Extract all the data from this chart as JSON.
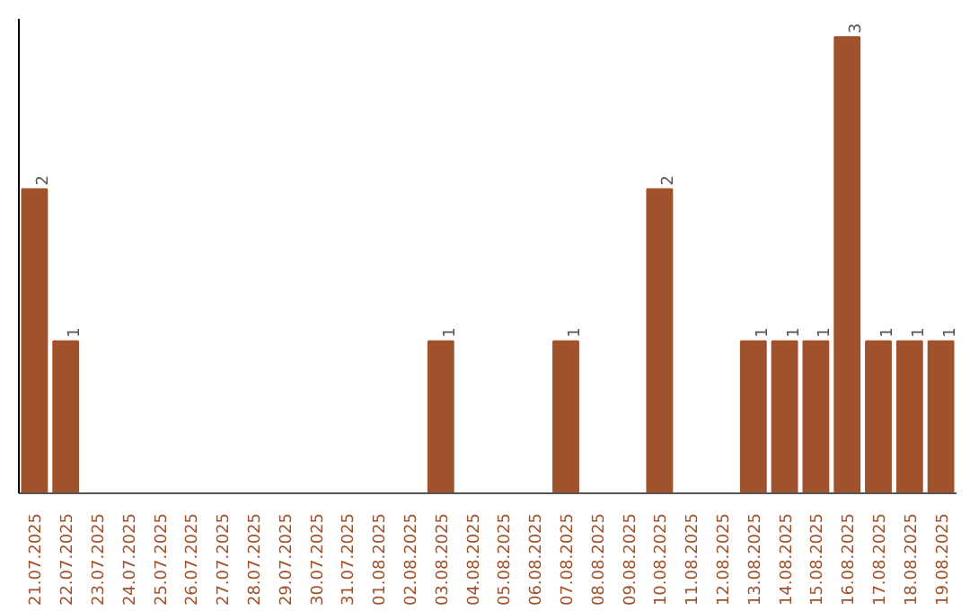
{
  "chart_data": {
    "type": "bar",
    "categories": [
      "21.07.2025",
      "22.07.2025",
      "23.07.2025",
      "24.07.2025",
      "25.07.2025",
      "26.07.2025",
      "27.07.2025",
      "28.07.2025",
      "29.07.2025",
      "30.07.2025",
      "31.07.2025",
      "01.08.2025",
      "02.08.2025",
      "03.08.2025",
      "04.08.2025",
      "05.08.2025",
      "06.08.2025",
      "07.08.2025",
      "08.08.2025",
      "09.08.2025",
      "10.08.2025",
      "11.08.2025",
      "12.08.2025",
      "13.08.2025",
      "14.08.2025",
      "15.08.2025",
      "16.08.2025",
      "17.08.2025",
      "18.08.2025",
      "19.08.2025"
    ],
    "values": [
      2,
      1,
      0,
      0,
      0,
      0,
      0,
      0,
      0,
      0,
      0,
      0,
      0,
      1,
      0,
      0,
      0,
      1,
      0,
      0,
      2,
      0,
      0,
      1,
      1,
      1,
      3,
      1,
      1,
      1
    ],
    "value_labels": [
      "2",
      "1",
      null,
      null,
      null,
      null,
      null,
      null,
      null,
      null,
      null,
      null,
      null,
      "1",
      null,
      null,
      null,
      "1",
      null,
      null,
      "2",
      null,
      null,
      "1",
      "1",
      "1",
      "3",
      "1",
      "1",
      "1"
    ],
    "color": "#a0522d",
    "ylim": [
      0,
      3.12
    ],
    "tick_labels": "x",
    "grid": false
  }
}
